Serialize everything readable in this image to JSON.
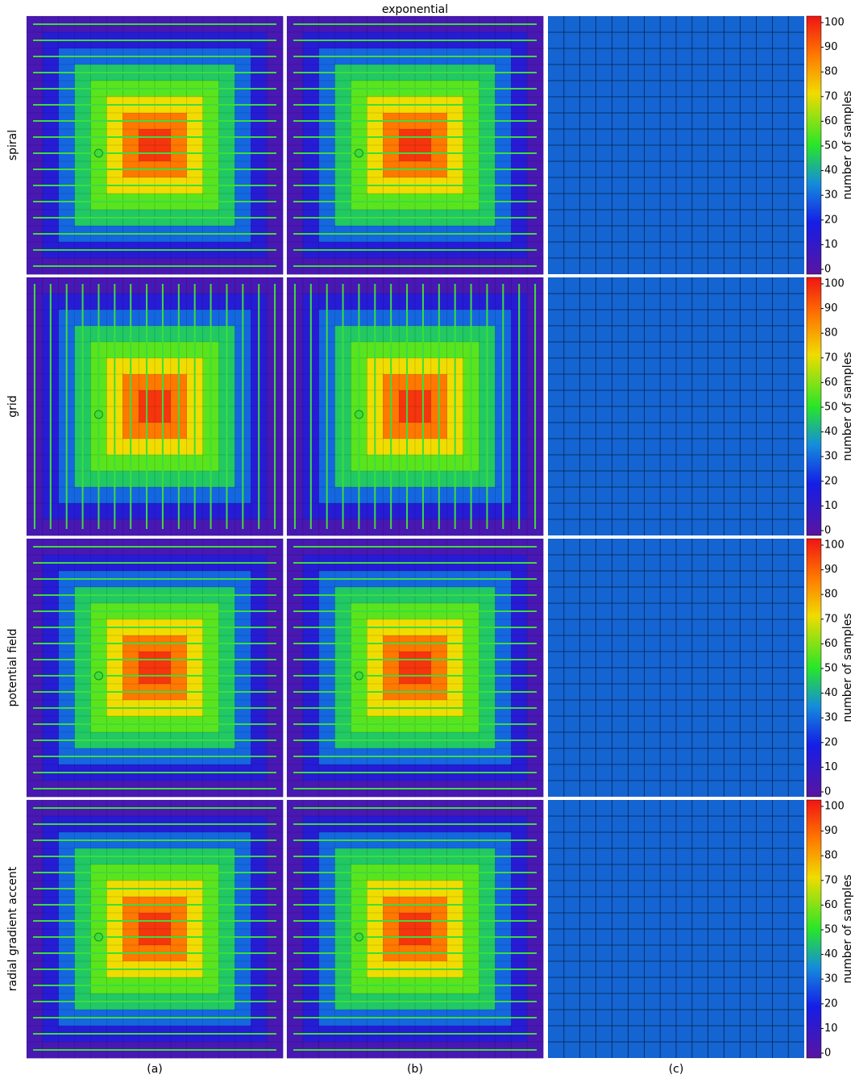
{
  "title": "exponential",
  "rows": [
    "spiral",
    "grid",
    "potential field",
    "radial gradient accent"
  ],
  "columns": [
    "(a)",
    "(b)",
    "(c)"
  ],
  "colorbar": {
    "label": "number of samples",
    "lim": [
      0,
      100
    ],
    "ticks": [
      0,
      10,
      20,
      30,
      40,
      50,
      60,
      70,
      80,
      90,
      100
    ]
  },
  "distribution": [
    [
      5,
      5,
      5,
      5,
      5,
      5,
      5,
      5,
      5,
      5,
      5,
      5,
      5,
      5,
      5,
      5
    ],
    [
      5,
      15,
      15,
      15,
      15,
      15,
      15,
      15,
      15,
      15,
      15,
      15,
      15,
      15,
      15,
      5
    ],
    [
      5,
      15,
      30,
      30,
      30,
      30,
      30,
      30,
      30,
      30,
      30,
      30,
      30,
      30,
      15,
      5
    ],
    [
      5,
      15,
      30,
      45,
      45,
      45,
      45,
      45,
      45,
      45,
      45,
      45,
      45,
      30,
      15,
      5
    ],
    [
      5,
      15,
      30,
      45,
      55,
      55,
      55,
      55,
      55,
      55,
      55,
      55,
      45,
      30,
      15,
      5
    ],
    [
      5,
      15,
      30,
      45,
      55,
      70,
      70,
      70,
      70,
      70,
      70,
      55,
      45,
      30,
      15,
      5
    ],
    [
      5,
      15,
      30,
      45,
      55,
      70,
      85,
      85,
      85,
      85,
      70,
      55,
      45,
      30,
      15,
      5
    ],
    [
      5,
      15,
      30,
      45,
      55,
      70,
      85,
      95,
      95,
      85,
      70,
      55,
      45,
      30,
      15,
      5
    ],
    [
      5,
      15,
      30,
      45,
      55,
      70,
      85,
      95,
      95,
      85,
      70,
      55,
      45,
      30,
      15,
      5
    ],
    [
      5,
      15,
      30,
      45,
      55,
      70,
      85,
      85,
      85,
      85,
      70,
      55,
      45,
      30,
      15,
      5
    ],
    [
      5,
      15,
      30,
      45,
      55,
      70,
      70,
      70,
      70,
      70,
      70,
      55,
      45,
      30,
      15,
      5
    ],
    [
      5,
      15,
      30,
      45,
      55,
      55,
      55,
      55,
      55,
      55,
      55,
      55,
      45,
      30,
      15,
      5
    ],
    [
      5,
      15,
      30,
      45,
      45,
      45,
      45,
      45,
      45,
      45,
      45,
      45,
      45,
      30,
      15,
      5
    ],
    [
      5,
      15,
      30,
      30,
      30,
      30,
      30,
      30,
      30,
      30,
      30,
      30,
      30,
      30,
      15,
      5
    ],
    [
      5,
      15,
      15,
      15,
      15,
      15,
      15,
      15,
      15,
      15,
      15,
      15,
      15,
      15,
      15,
      5
    ],
    [
      5,
      5,
      5,
      5,
      5,
      5,
      5,
      5,
      5,
      5,
      5,
      5,
      5,
      5,
      5,
      5
    ]
  ]
}
